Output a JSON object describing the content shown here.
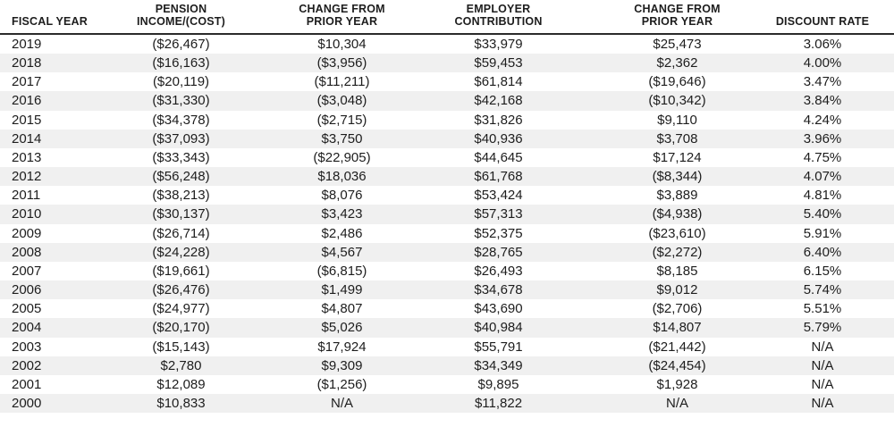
{
  "colors": {
    "background": "#ffffff",
    "zebra_stripe": "#f0f0f0",
    "header_rule": "#2b2b2b",
    "text": "#1d1d1d"
  },
  "chart_data": {
    "type": "table",
    "title": "",
    "columns": [
      {
        "id": "fiscal-year",
        "header_lines": [
          "FISCAL YEAR"
        ],
        "align": "left"
      },
      {
        "id": "pension-income-cost",
        "header_lines": [
          "PENSION",
          "INCOME/(COST)"
        ],
        "align": "center"
      },
      {
        "id": "change-from-prior-year-pension",
        "header_lines": [
          "CHANGE FROM",
          "PRIOR YEAR"
        ],
        "align": "center"
      },
      {
        "id": "employer-contribution",
        "header_lines": [
          "EMPLOYER",
          "CONTRIBUTION"
        ],
        "align": "center"
      },
      {
        "id": "change-from-prior-year-contribution",
        "header_lines": [
          "CHANGE FROM",
          "PRIOR YEAR"
        ],
        "align": "center"
      },
      {
        "id": "discount-rate",
        "header_lines": [
          "DISCOUNT RATE"
        ],
        "align": "center"
      }
    ],
    "rows": [
      [
        "2019",
        "($26,467)",
        "$10,304",
        "$33,979",
        "$25,473",
        "3.06%"
      ],
      [
        "2018",
        "($16,163)",
        "($3,956)",
        "$59,453",
        "$2,362",
        "4.00%"
      ],
      [
        "2017",
        "($20,119)",
        "($11,211)",
        "$61,814",
        "($19,646)",
        "3.47%"
      ],
      [
        "2016",
        "($31,330)",
        "($3,048)",
        "$42,168",
        "($10,342)",
        "3.84%"
      ],
      [
        "2015",
        "($34,378)",
        "($2,715)",
        "$31,826",
        "$9,110",
        "4.24%"
      ],
      [
        "2014",
        "($37,093)",
        "$3,750",
        "$40,936",
        "$3,708",
        "3.96%"
      ],
      [
        "2013",
        "($33,343)",
        "($22,905)",
        "$44,645",
        "$17,124",
        "4.75%"
      ],
      [
        "2012",
        "($56,248)",
        "$18,036",
        "$61,768",
        "($8,344)",
        "4.07%"
      ],
      [
        "2011",
        "($38,213)",
        "$8,076",
        "$53,424",
        "$3,889",
        "4.81%"
      ],
      [
        "2010",
        "($30,137)",
        "$3,423",
        "$57,313",
        "($4,938)",
        "5.40%"
      ],
      [
        "2009",
        "($26,714)",
        "$2,486",
        "$52,375",
        "($23,610)",
        "5.91%"
      ],
      [
        "2008",
        "($24,228)",
        "$4,567",
        "$28,765",
        "($2,272)",
        "6.40%"
      ],
      [
        "2007",
        "($19,661)",
        "($6,815)",
        "$26,493",
        "$8,185",
        "6.15%"
      ],
      [
        "2006",
        "($26,476)",
        "$1,499",
        "$34,678",
        "$9,012",
        "5.74%"
      ],
      [
        "2005",
        "($24,977)",
        "$4,807",
        "$43,690",
        "($2,706)",
        "5.51%"
      ],
      [
        "2004",
        "($20,170)",
        "$5,026",
        "$40,984",
        "$14,807",
        "5.79%"
      ],
      [
        "2003",
        "($15,143)",
        "$17,924",
        "$55,791",
        "($21,442)",
        "N/A"
      ],
      [
        "2002",
        "$2,780",
        "$9,309",
        "$34,349",
        "($24,454)",
        "N/A"
      ],
      [
        "2001",
        "$12,089",
        "($1,256)",
        "$9,895",
        "$1,928",
        "N/A"
      ],
      [
        "2000",
        "$10,833",
        "N/A",
        "$11,822",
        "N/A",
        "N/A"
      ]
    ],
    "layout": {
      "zebra_striping": true,
      "first_data_row_background": "white",
      "header_rule": "full-width dark rule under header",
      "row_order": "years descending 2019 to 2000",
      "grid": false,
      "legend": false
    }
  }
}
